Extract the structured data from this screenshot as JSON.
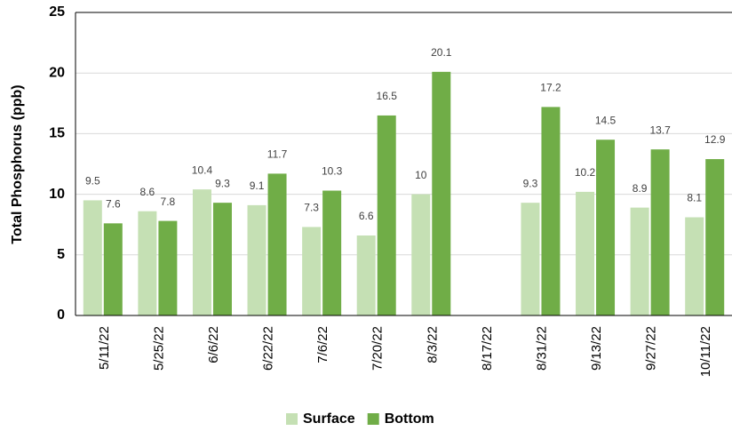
{
  "chart_data": {
    "type": "bar",
    "y_label": "Total Phosphorus (ppb)",
    "categories": [
      "5/11/22",
      "5/25/22",
      "6/6/22",
      "6/22/22",
      "7/6/22",
      "7/20/22",
      "8/3/22",
      "8/17/22",
      "8/31/22",
      "9/13/22",
      "9/27/22",
      "10/11/22"
    ],
    "series": [
      {
        "name": "Surface",
        "color": "#c5e0b4",
        "values": [
          9.5,
          8.6,
          10.4,
          9.1,
          7.3,
          6.6,
          10,
          null,
          9.3,
          10.2,
          8.9,
          8.1
        ]
      },
      {
        "name": "Bottom",
        "color": "#70ad47",
        "values": [
          7.6,
          7.8,
          9.3,
          11.7,
          10.3,
          16.5,
          20.1,
          null,
          17.2,
          14.5,
          13.7,
          12.9
        ]
      }
    ],
    "ylim": [
      0,
      25
    ],
    "yticks": [
      0,
      5,
      10,
      15,
      20,
      25
    ],
    "grid": true,
    "legend": "bottom"
  }
}
